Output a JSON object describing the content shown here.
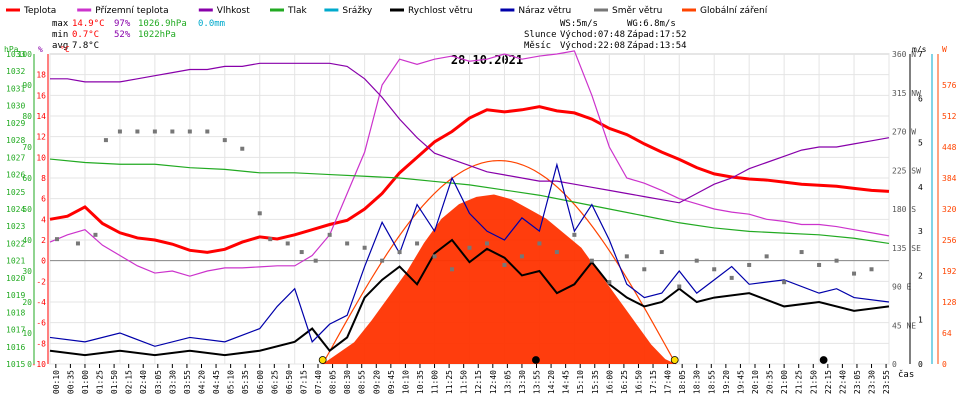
{
  "legend": [
    {
      "label": "Teplota",
      "color": "#ff0000"
    },
    {
      "label": "Přízemní teplota",
      "color": "#cc33cc"
    },
    {
      "label": "Vlhkost",
      "color": "#8800aa"
    },
    {
      "label": "Tlak",
      "color": "#22aa22"
    },
    {
      "label": "Srážky",
      "color": "#00aacc"
    },
    {
      "label": "Rychlost větru",
      "color": "#000000"
    },
    {
      "label": "Náraz větru",
      "color": "#0000aa"
    },
    {
      "label": "Směr větru",
      "color": "#777777"
    },
    {
      "label": "Globální záření",
      "color": "#ff4400"
    }
  ],
  "stats": {
    "max": {
      "label": "max",
      "temp": "14.9°C",
      "hum": "97%",
      "press": "1026.9hPa",
      "rain": "0.0mm"
    },
    "min": {
      "label": "min",
      "temp": "0.7°C",
      "hum": "52%",
      "press": "1022hPa"
    },
    "avg": {
      "label": "avg",
      "temp": "7.8°C"
    }
  },
  "wind_info": {
    "ws": "WS:5m/s",
    "wg": "WG:6.8m/s",
    "sun_label": "Slunce",
    "sunrise": "Východ:07:48",
    "sunset": "Západ:17:52",
    "moon_label": "Měsíc",
    "moonrise": "Východ:22:08",
    "moonset": "Západ:13:54"
  },
  "axis_units": {
    "press": "hPa",
    "hum": "%",
    "temp": "°C",
    "wind": "m/s",
    "rad": "W"
  },
  "chart_data": {
    "type": "line",
    "title": "28.10.2021",
    "xlabel": "čas",
    "x_ticks": [
      "00:10",
      "00:35",
      "01:00",
      "01:25",
      "01:50",
      "02:15",
      "02:40",
      "03:05",
      "03:30",
      "03:55",
      "04:20",
      "04:45",
      "05:10",
      "05:35",
      "06:00",
      "06:25",
      "06:50",
      "07:15",
      "07:40",
      "08:05",
      "08:30",
      "08:55",
      "09:20",
      "09:45",
      "10:10",
      "10:35",
      "11:00",
      "11:25",
      "11:50",
      "12:15",
      "12:40",
      "13:05",
      "13:30",
      "13:55",
      "14:20",
      "14:45",
      "15:10",
      "15:35",
      "16:00",
      "16:25",
      "16:50",
      "17:15",
      "17:40",
      "18:05",
      "18:30",
      "18:55",
      "19:20",
      "19:45",
      "20:10",
      "20:35",
      "21:00",
      "21:25",
      "21:50",
      "22:15",
      "22:40",
      "23:05",
      "23:30",
      "23:55"
    ],
    "axes": {
      "press": {
        "label": "hPa",
        "range": [
          1015,
          1033
        ],
        "ticks": [
          "1015",
          "1016",
          "1017",
          "1018",
          "1019",
          "1020",
          "1021",
          "1022",
          "1023",
          "1024",
          "1025",
          "1026",
          "1027",
          "1028",
          "1029",
          "1030",
          "1031",
          "1032",
          "1033"
        ]
      },
      "hum": {
        "label": "%",
        "range": [
          0,
          100
        ],
        "ticks": [
          "0",
          "10",
          "20",
          "30",
          "40",
          "50",
          "60",
          "70",
          "80",
          "90",
          "100"
        ]
      },
      "temp": {
        "label": "°C",
        "range": [
          -10,
          20
        ],
        "ticks": [
          "-10",
          "-8",
          "-6",
          "-4",
          "-2",
          "0",
          "2",
          "4",
          "6",
          "8",
          "10",
          "12",
          "14",
          "16",
          "18"
        ]
      },
      "dir": {
        "range": [
          0,
          360
        ],
        "ticks": [
          "0",
          "45 NE",
          "90 E",
          "135 SE",
          "180 S",
          "225 SW",
          "270 W",
          "315 NW",
          "360 N"
        ]
      },
      "wind": {
        "label": "m/s",
        "range": [
          0,
          7
        ],
        "ticks": [
          "0",
          "1",
          "2",
          "3",
          "4",
          "5",
          "6",
          "7"
        ]
      },
      "rad": {
        "label": "W",
        "range": [
          0,
          640
        ],
        "ticks": [
          "0",
          "64",
          "128",
          "192",
          "256",
          "320",
          "384",
          "448",
          "512",
          "576"
        ]
      }
    },
    "series": [
      {
        "name": "Teplota",
        "axis": "temp",
        "x": [
          0,
          0.5,
          1,
          1.5,
          2,
          2.5,
          3,
          3.5,
          4,
          4.5,
          5,
          5.5,
          6,
          6.5,
          7,
          7.5,
          8,
          8.5,
          9,
          9.5,
          10,
          10.5,
          11,
          11.5,
          12,
          12.5,
          13,
          13.5,
          14,
          14.5,
          15,
          15.5,
          16,
          16.5,
          17,
          17.5,
          18,
          18.5,
          19,
          19.5,
          20,
          20.5,
          21,
          21.5,
          22,
          22.5,
          23,
          23.5,
          24
        ],
        "values": [
          4.0,
          4.3,
          5.2,
          3.6,
          2.7,
          2.2,
          2.0,
          1.6,
          1.0,
          0.8,
          1.1,
          1.8,
          2.3,
          2.1,
          2.5,
          3.0,
          3.5,
          3.9,
          5.0,
          6.5,
          8.5,
          10.0,
          11.5,
          12.5,
          13.8,
          14.6,
          14.4,
          14.6,
          14.9,
          14.5,
          14.3,
          13.7,
          12.8,
          12.2,
          11.3,
          10.5,
          9.8,
          9.0,
          8.4,
          8.1,
          7.9,
          7.8,
          7.6,
          7.4,
          7.3,
          7.2,
          7.0,
          6.8,
          6.7
        ]
      },
      {
        "name": "Přízemní teplota",
        "axis": "temp",
        "x": [
          0,
          0.5,
          1,
          1.5,
          2,
          2.5,
          3,
          3.5,
          4,
          4.5,
          5,
          5.5,
          6,
          6.5,
          7,
          7.5,
          8,
          8.5,
          9,
          9.5,
          10,
          10.5,
          11,
          11.5,
          12,
          12.5,
          13,
          13.5,
          14,
          14.5,
          15,
          15.5,
          16,
          16.5,
          17,
          17.5,
          18,
          18.5,
          19,
          19.5,
          20,
          20.5,
          21,
          21.5,
          22,
          22.5,
          23,
          23.5,
          24
        ],
        "values": [
          1.8,
          2.5,
          3.0,
          1.5,
          0.5,
          -0.5,
          -1.2,
          -1.0,
          -1.5,
          -1.0,
          -0.7,
          -0.7,
          -0.6,
          -0.5,
          -0.5,
          0.5,
          2.5,
          6.5,
          10.5,
          17.0,
          19.5,
          19.0,
          19.5,
          19.8,
          19.3,
          19.5,
          20.0,
          19.5,
          19.8,
          20.0,
          20.3,
          16.0,
          11.0,
          8.0,
          7.5,
          6.8,
          6.0,
          5.5,
          5.0,
          4.7,
          4.5,
          4.0,
          3.8,
          3.5,
          3.5,
          3.3,
          3.0,
          2.7,
          2.4
        ]
      },
      {
        "name": "Vlhkost",
        "axis": "hum",
        "x": [
          0,
          0.5,
          1,
          1.5,
          2,
          2.5,
          3,
          3.5,
          4,
          4.5,
          5,
          5.5,
          6,
          6.5,
          7,
          7.5,
          8,
          8.5,
          9,
          9.5,
          10,
          10.5,
          11,
          11.5,
          12,
          12.5,
          13,
          13.5,
          14,
          14.5,
          15,
          15.5,
          16,
          16.5,
          17,
          17.5,
          18,
          18.5,
          19,
          19.5,
          20,
          20.5,
          21,
          21.5,
          22,
          22.5,
          23,
          23.5,
          24
        ],
        "values": [
          92,
          92,
          91,
          91,
          91,
          92,
          93,
          94,
          95,
          95,
          96,
          96,
          97,
          97,
          97,
          97,
          97,
          96,
          92,
          86,
          79,
          73,
          68,
          66,
          64,
          62,
          61,
          60,
          59,
          59,
          58,
          57,
          56,
          55,
          54,
          53,
          52,
          55,
          58,
          60,
          63,
          65,
          67,
          69,
          70,
          70,
          71,
          72,
          73
        ]
      },
      {
        "name": "Tlak",
        "axis": "press",
        "x": [
          0,
          1,
          2,
          3,
          4,
          5,
          6,
          7,
          8,
          9,
          10,
          11,
          12,
          13,
          14,
          15,
          16,
          17,
          18,
          19,
          20,
          21,
          22,
          23,
          24
        ],
        "values": [
          1026.9,
          1026.7,
          1026.6,
          1026.6,
          1026.4,
          1026.3,
          1026.1,
          1026.1,
          1026.0,
          1025.9,
          1025.8,
          1025.6,
          1025.4,
          1025.1,
          1024.8,
          1024.4,
          1024.0,
          1023.6,
          1023.2,
          1022.9,
          1022.7,
          1022.6,
          1022.5,
          1022.3,
          1022.0
        ]
      },
      {
        "name": "Rychlost větru",
        "axis": "wind",
        "x": [
          0,
          1,
          2,
          3,
          4,
          5,
          6,
          7,
          7.5,
          8,
          8.5,
          9,
          9.5,
          10,
          10.5,
          11,
          11.5,
          12,
          12.5,
          13,
          13.5,
          14,
          14.5,
          15,
          15.5,
          16,
          16.5,
          17,
          17.5,
          18,
          18.5,
          19,
          20,
          21,
          22,
          23,
          24
        ],
        "values": [
          0.3,
          0.2,
          0.3,
          0.2,
          0.3,
          0.2,
          0.3,
          0.5,
          0.8,
          0.3,
          0.6,
          1.5,
          1.9,
          2.2,
          1.8,
          2.5,
          2.8,
          2.3,
          2.6,
          2.4,
          2.0,
          2.1,
          1.6,
          1.8,
          2.3,
          1.8,
          1.5,
          1.3,
          1.4,
          1.7,
          1.4,
          1.5,
          1.6,
          1.3,
          1.4,
          1.2,
          1.3
        ]
      },
      {
        "name": "Náraz větru",
        "axis": "wind",
        "x": [
          0,
          1,
          2,
          3,
          4,
          5,
          6,
          6.5,
          7,
          7.5,
          8,
          8.5,
          9,
          9.5,
          10,
          10.5,
          11,
          11.5,
          12,
          12.5,
          13,
          13.5,
          14,
          14.5,
          15,
          15.5,
          16,
          16.5,
          17,
          17.5,
          18,
          18.5,
          19,
          19.5,
          20,
          21,
          22,
          22.5,
          23,
          24
        ],
        "values": [
          0.6,
          0.5,
          0.7,
          0.4,
          0.6,
          0.5,
          0.8,
          1.3,
          1.7,
          0.5,
          0.9,
          1.1,
          2.2,
          3.2,
          2.5,
          3.6,
          3.0,
          4.2,
          3.4,
          3.0,
          2.8,
          3.3,
          3.0,
          4.5,
          3.0,
          3.6,
          2.8,
          1.8,
          1.5,
          1.6,
          2.1,
          1.6,
          1.9,
          2.2,
          1.8,
          1.9,
          1.6,
          1.7,
          1.5,
          1.4
        ]
      },
      {
        "name": "Směr větru",
        "axis": "dir",
        "mode": "scatter",
        "x": [
          0.2,
          0.8,
          1.3,
          1.6,
          2,
          2.5,
          3,
          3.5,
          4,
          4.5,
          5,
          5.5,
          6,
          6.3,
          6.8,
          7.2,
          7.6,
          8,
          8.5,
          9,
          9.5,
          10,
          10.5,
          11,
          11.5,
          12,
          12.5,
          13,
          13.5,
          14,
          14.5,
          15,
          15.5,
          16,
          16.5,
          17,
          17.5,
          18,
          18.5,
          19,
          19.5,
          20,
          20.5,
          21,
          21.5,
          22,
          22.5,
          23,
          23.5
        ],
        "values": [
          145,
          140,
          150,
          260,
          270,
          270,
          270,
          270,
          270,
          270,
          260,
          250,
          175,
          145,
          140,
          130,
          120,
          150,
          140,
          135,
          120,
          130,
          140,
          125,
          110,
          135,
          140,
          115,
          125,
          140,
          130,
          150,
          120,
          95,
          125,
          110,
          130,
          90,
          120,
          110,
          100,
          115,
          125,
          95,
          130,
          115,
          120,
          105,
          110
        ]
      },
      {
        "name": "Globální záření",
        "axis": "rad",
        "mode": "area",
        "x": [
          7.8,
          8.2,
          8.7,
          9.2,
          9.7,
          10.2,
          10.7,
          11.2,
          11.7,
          12.2,
          12.7,
          13.2,
          13.7,
          14.2,
          14.7,
          15.2,
          15.7,
          16.2,
          16.7,
          17.2,
          17.6,
          17.9
        ],
        "values": [
          0,
          20,
          45,
          90,
          140,
          190,
          250,
          300,
          330,
          345,
          350,
          340,
          320,
          300,
          270,
          240,
          190,
          140,
          90,
          40,
          10,
          0
        ]
      }
    ],
    "theoretical_radiation": {
      "name": "teoretické záření",
      "color": "#ff4400",
      "peak": 420,
      "start": 7.8,
      "end": 17.9
    },
    "markers": [
      {
        "name": "sunrise",
        "time": 7.8,
        "color": "#ffdd00"
      },
      {
        "name": "moonset",
        "time": 13.9,
        "color": "#000000"
      },
      {
        "name": "sunset",
        "time": 17.87,
        "color": "#ffdd00"
      },
      {
        "name": "moonrise",
        "time": 22.13,
        "color": "#000000"
      }
    ],
    "grid": true,
    "legend_position": "top"
  }
}
